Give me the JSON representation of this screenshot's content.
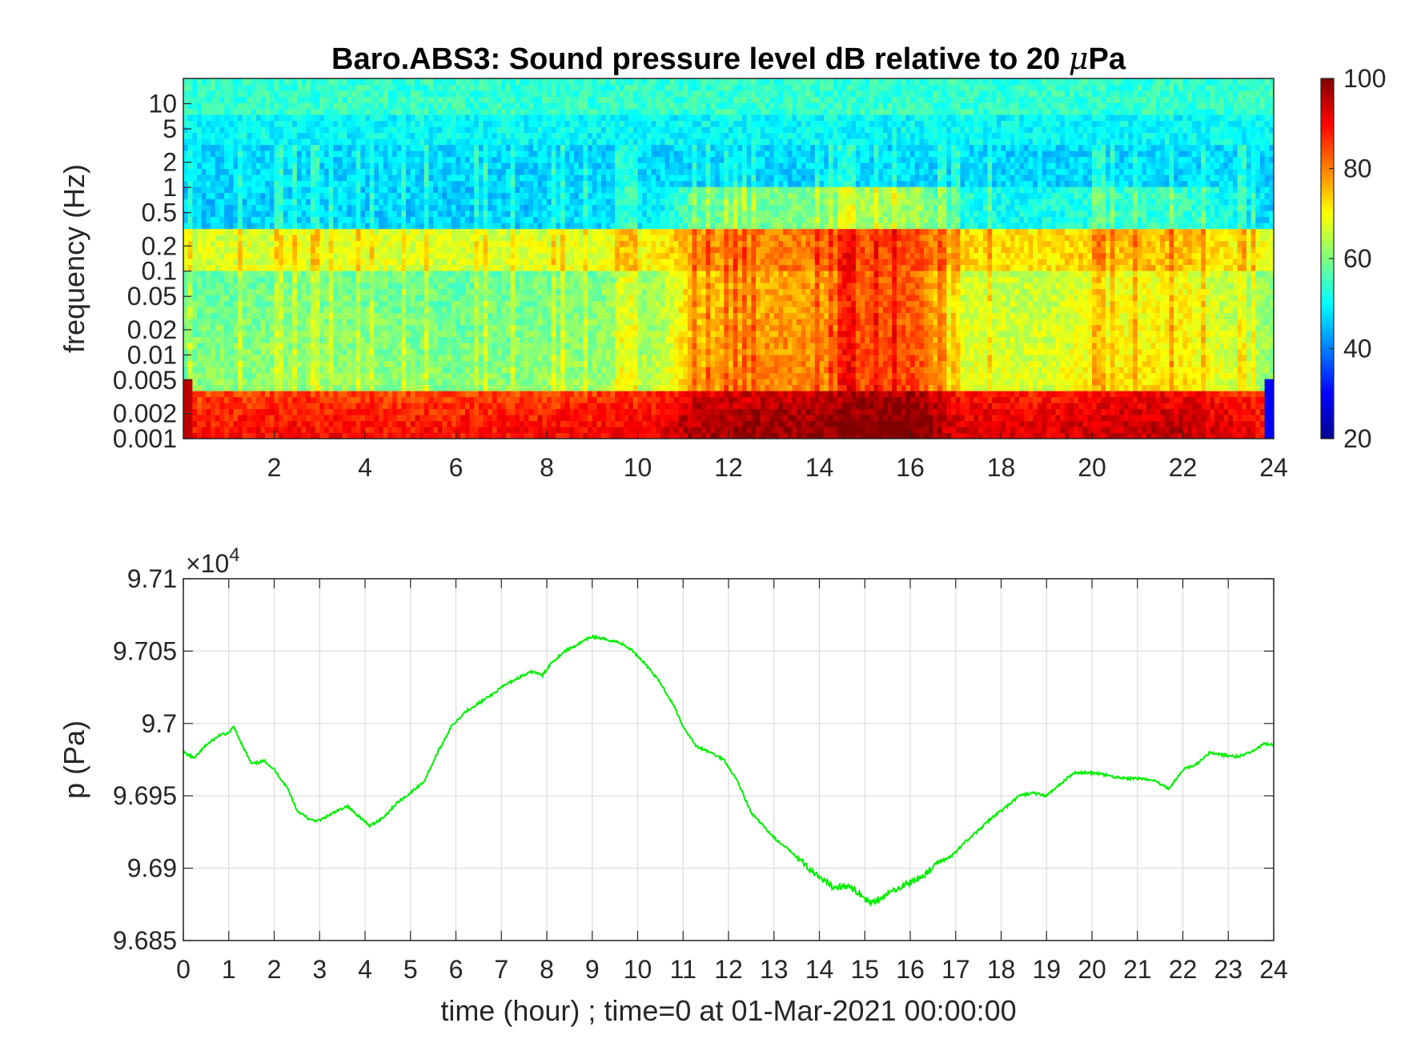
{
  "chart_data": [
    {
      "type": "heatmap",
      "title_main": "Baro.ABS3: Sound pressure level dB relative to 20 ",
      "title_mu": "μ",
      "title_end": "Pa",
      "ylabel": "frequency (Hz)",
      "y_scale": "log",
      "ylim": [
        0.001,
        20
      ],
      "yticks": [
        0.001,
        0.002,
        0.005,
        0.01,
        0.02,
        0.05,
        0.1,
        0.2,
        0.5,
        1,
        2,
        5,
        10
      ],
      "ytick_labels": [
        "0.001",
        "0.002",
        "0.005",
        "0.01",
        "0.02",
        "0.05",
        "0.1",
        "0.2",
        "0.5",
        "1",
        "2",
        "5",
        "10"
      ],
      "xlim": [
        0,
        24
      ],
      "xticks": [
        2,
        4,
        6,
        8,
        10,
        12,
        14,
        16,
        18,
        20,
        22,
        24
      ],
      "xtick_labels": [
        "2",
        "4",
        "6",
        "8",
        "10",
        "12",
        "14",
        "16",
        "18",
        "20",
        "22",
        "24"
      ],
      "colorbar": {
        "colormap": "jet",
        "clim": [
          20,
          100
        ],
        "ticks": [
          20,
          40,
          60,
          80,
          100
        ],
        "tick_labels": [
          "20",
          "40",
          "60",
          "80",
          "100"
        ]
      },
      "time_activity": [
        [
          0,
          0.3
        ],
        [
          3,
          0.35
        ],
        [
          6,
          0.3
        ],
        [
          9,
          0.35
        ],
        [
          10.5,
          0.45
        ],
        [
          11.2,
          0.75
        ],
        [
          13,
          0.85
        ],
        [
          14.2,
          0.85
        ],
        [
          14.6,
          1.0
        ],
        [
          16.2,
          1.0
        ],
        [
          17,
          0.55
        ],
        [
          19,
          0.5
        ],
        [
          20,
          0.6
        ],
        [
          22,
          0.65
        ],
        [
          24,
          0.35
        ]
      ]
    },
    {
      "type": "line",
      "ylabel": "p (Pa)",
      "xlabel": "time (hour) ; time=0 at 01-Mar-2021 00:00:00",
      "xlim": [
        0,
        24
      ],
      "ylim": [
        96850,
        97100
      ],
      "exponent_label": "×10",
      "exponent_power": "4",
      "xticks": [
        0,
        1,
        2,
        3,
        4,
        5,
        6,
        7,
        8,
        9,
        10,
        11,
        12,
        13,
        14,
        15,
        16,
        17,
        18,
        19,
        20,
        21,
        22,
        23,
        24
      ],
      "xtick_labels": [
        "0",
        "1",
        "2",
        "3",
        "4",
        "5",
        "6",
        "7",
        "8",
        "9",
        "10",
        "11",
        "12",
        "13",
        "14",
        "15",
        "16",
        "17",
        "18",
        "19",
        "20",
        "21",
        "22",
        "23",
        "24"
      ],
      "yticks": [
        96850,
        96900,
        96950,
        97000,
        97050,
        97100
      ],
      "ytick_labels": [
        "9.685",
        "9.69",
        "9.695",
        "9.7",
        "9.705",
        "9.71"
      ],
      "grid": true,
      "color": "#00ee00",
      "series": [
        {
          "x": [
            0,
            0.25,
            0.5,
            0.8,
            1.0,
            1.1,
            1.3,
            1.5,
            1.8,
            2.0,
            2.3,
            2.5,
            2.8,
            3.0,
            3.3,
            3.6,
            3.9,
            4.1,
            4.4,
            4.7,
            5.0,
            5.3,
            5.6,
            5.9,
            6.2,
            6.5,
            6.8,
            7.1,
            7.4,
            7.7,
            7.9,
            8.1,
            8.4,
            8.7,
            9.0,
            9.3,
            9.6,
            9.9,
            10.2,
            10.5,
            10.8,
            11.0,
            11.3,
            11.6,
            11.9,
            12.2,
            12.5,
            12.8,
            13.1,
            13.4,
            13.7,
            14.0,
            14.3,
            14.6,
            14.9,
            15.1,
            15.4,
            15.7,
            16.0,
            16.3,
            16.6,
            16.9,
            17.2,
            17.5,
            17.8,
            18.1,
            18.4,
            18.7,
            19.0,
            19.3,
            19.6,
            19.9,
            20.2,
            20.5,
            20.8,
            21.1,
            21.4,
            21.7,
            22.0,
            22.3,
            22.6,
            22.9,
            23.2,
            23.5,
            23.8,
            24.0
          ],
          "y": [
            96980,
            96976,
            96985,
            96992,
            96993,
            96998,
            96985,
            96972,
            96974,
            96968,
            96955,
            96940,
            96933,
            96933,
            96938,
            96943,
            96935,
            96929,
            96935,
            96945,
            96952,
            96960,
            96980,
            96998,
            97008,
            97014,
            97020,
            97027,
            97032,
            97036,
            97033,
            97042,
            97050,
            97055,
            97060,
            97058,
            97056,
            97050,
            97040,
            97028,
            97012,
            96998,
            96984,
            96980,
            96975,
            96960,
            96938,
            96928,
            96918,
            96911,
            96902,
            96893,
            96887,
            96888,
            96882,
            96876,
            96880,
            96886,
            96890,
            96895,
            96904,
            96908,
            96918,
            96926,
            96935,
            96942,
            96950,
            96952,
            96950,
            96958,
            96966,
            96966,
            96965,
            96963,
            96962,
            96962,
            96960,
            96955,
            96968,
            96972,
            96980,
            96978,
            96977,
            96980,
            96986,
            96985
          ]
        }
      ]
    }
  ]
}
